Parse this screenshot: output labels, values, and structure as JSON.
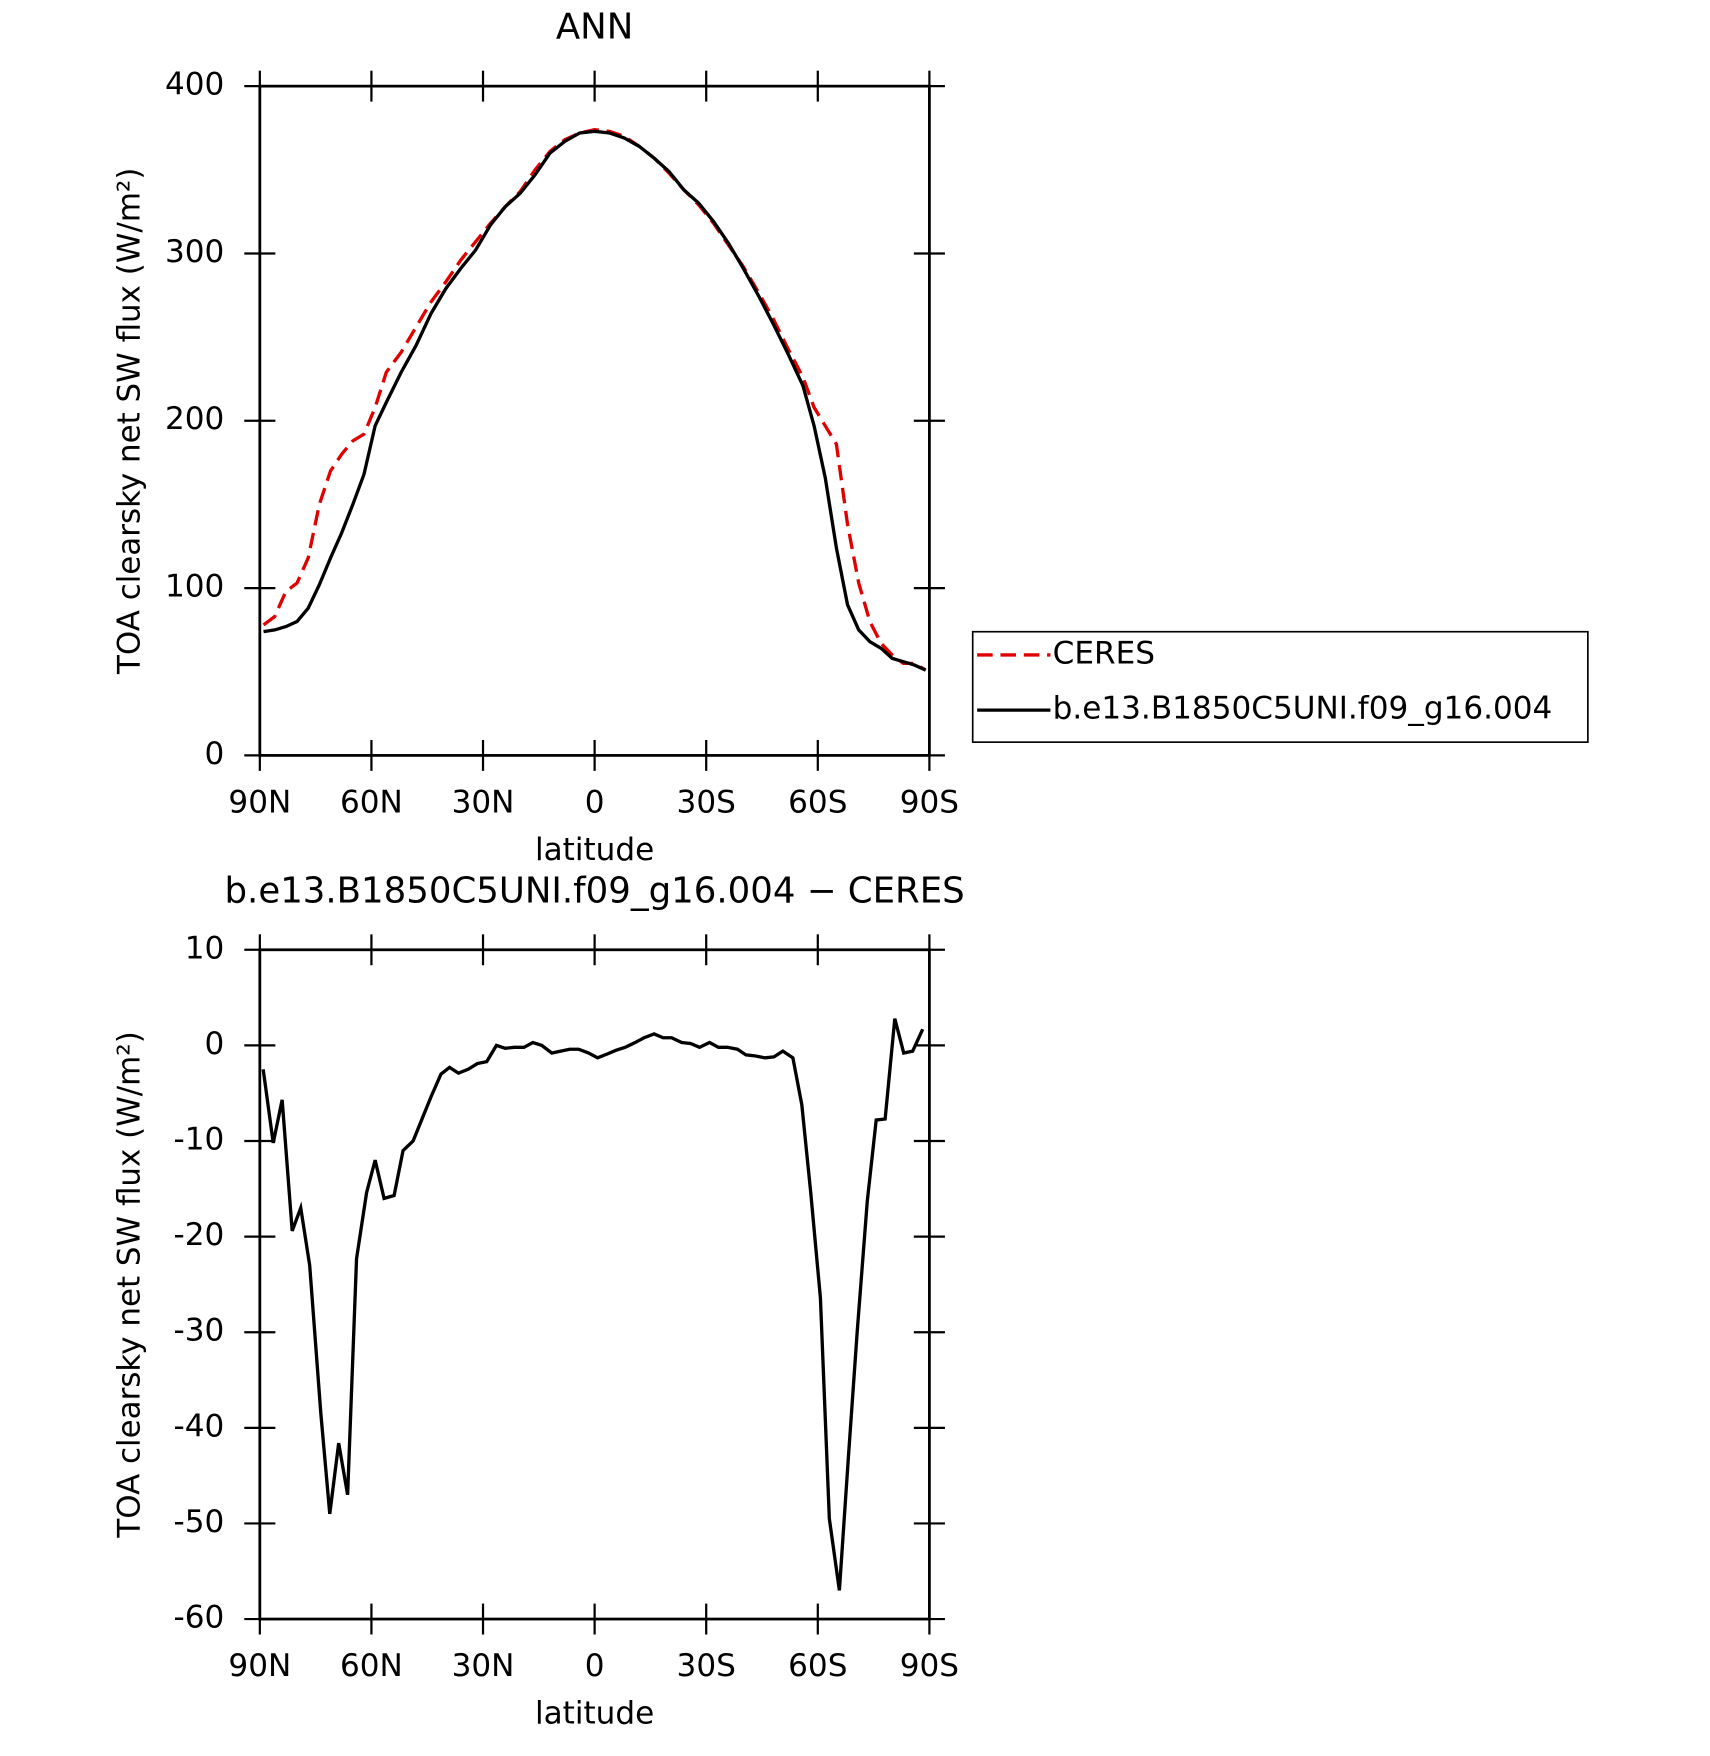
{
  "chart_data": [
    {
      "type": "line",
      "title": "ANN",
      "x_label": "latitude",
      "y_label": "TOA clearsky net SW flux (W/m²)",
      "x": [
        89,
        86,
        83,
        80,
        77,
        74,
        71,
        68,
        65,
        62,
        59,
        56,
        52,
        48,
        44,
        40,
        36,
        32,
        28,
        24,
        20,
        16,
        12,
        8,
        4,
        0,
        -4,
        -8,
        -12,
        -16,
        -20,
        -24,
        -28,
        -32,
        -36,
        -40,
        -44,
        -48,
        -52,
        -56,
        -59,
        -62,
        -65,
        -68,
        -71,
        -74,
        -77,
        -80,
        -83,
        -86,
        -89
      ],
      "series": [
        {
          "name": "CERES",
          "color": "#e00000",
          "dashed": true,
          "values": [
            78,
            83,
            98,
            103,
            118,
            150,
            170,
            180,
            188,
            192,
            208,
            229,
            241,
            256,
            271,
            283,
            296,
            307,
            318,
            328,
            337,
            350,
            361,
            368,
            372,
            374,
            373,
            370,
            364,
            357,
            348,
            338,
            329,
            318,
            305,
            292,
            277,
            261,
            243,
            226,
            208,
            197,
            186,
            138,
            103,
            80,
            67,
            60,
            55,
            55,
            51
          ]
        },
        {
          "name": "b.e13.B1850C5UNI.f09_g16.004",
          "color": "#000000",
          "dashed": false,
          "values": [
            74,
            75,
            77,
            80,
            88,
            102,
            118,
            133,
            150,
            168,
            197,
            211,
            229,
            245,
            264,
            279,
            291,
            302,
            317,
            328,
            336,
            347,
            360,
            367,
            372,
            373,
            372,
            369,
            364,
            357,
            349,
            338,
            330,
            319,
            306,
            291,
            275,
            258,
            240,
            221,
            197,
            166,
            124,
            90,
            75,
            68,
            64,
            58,
            56,
            54,
            51
          ]
        }
      ],
      "xlim": [
        90,
        -90
      ],
      "xticks": [
        {
          "value": 90,
          "label": "90N"
        },
        {
          "value": 60,
          "label": "60N"
        },
        {
          "value": 30,
          "label": "30N"
        },
        0,
        {
          "value": -30,
          "label": "30S"
        },
        {
          "value": -60,
          "label": "60S"
        },
        {
          "value": -90,
          "label": "90S"
        }
      ],
      "ylim": [
        0,
        400
      ],
      "yticks": [
        0,
        100,
        200,
        300,
        400
      ],
      "legend": "right"
    },
    {
      "type": "line",
      "title": "b.e13.B1850C5UNI.f09_g16.004 − CERES",
      "x_label": "latitude",
      "y_label": "TOA clearsky net SW flux (W/m²)",
      "x": [
        89.1,
        86.4,
        84,
        81.3,
        79,
        76.6,
        73.6,
        71.2,
        68.8,
        66.4,
        64,
        61.3,
        59,
        56.6,
        53.9,
        51.5,
        48.8,
        46.4,
        44,
        41.3,
        39,
        36.6,
        34,
        31.5,
        29,
        26.4,
        24,
        21.6,
        19,
        16.6,
        14.2,
        11.5,
        9.1,
        6.7,
        4.3,
        1.6,
        -0.8,
        -3.4,
        -5.8,
        -8.2,
        -10.9,
        -13.3,
        -16,
        -18.4,
        -20.7,
        -23.4,
        -25.8,
        -28.2,
        -30.9,
        -33.3,
        -35.7,
        -38.4,
        -40.7,
        -43.1,
        -45.8,
        -48.2,
        -50.6,
        -53.3,
        -55.7,
        -58.1,
        -60.7,
        -63.1,
        -65.8,
        -68.2,
        -70.6,
        -73.3,
        -75.7,
        -78.1,
        -80.7,
        -83.1,
        -85.5,
        -88.2
      ],
      "series": [
        {
          "name": "b.e13.B1850C5UNI.f09_g16.004",
          "color": "#000000",
          "dashed": false,
          "values": [
            -2.5,
            -10.2,
            -5.7,
            -19.4,
            -17,
            -23,
            -38.5,
            -49,
            -41.6,
            -47,
            -22.3,
            -15.4,
            -12,
            -16,
            -15.7,
            -11,
            -10,
            -7.7,
            -5.4,
            -3,
            -2.3,
            -2.9,
            -2.5,
            -1.9,
            -1.7,
            0,
            -0.3,
            -0.2,
            -0.2,
            0.3,
            0,
            -0.8,
            -0.6,
            -0.4,
            -0.4,
            -0.8,
            -1.3,
            -0.9,
            -0.5,
            -0.2,
            0.3,
            0.8,
            1.2,
            0.8,
            0.8,
            0.3,
            0.2,
            -0.2,
            0.3,
            -0.2,
            -0.2,
            -0.4,
            -1,
            -1.1,
            -1.3,
            -1.2,
            -0.6,
            -1.3,
            -6.2,
            -15.4,
            -26.4,
            -49.5,
            -57,
            -43.2,
            -29.9,
            -16.3,
            -7.8,
            -7.7,
            2.8,
            -0.8,
            -0.6,
            1.7
          ]
        }
      ],
      "xlim": [
        90,
        -90
      ],
      "xticks": [
        {
          "value": 90,
          "label": "90N"
        },
        {
          "value": 60,
          "label": "60N"
        },
        {
          "value": 30,
          "label": "30N"
        },
        0,
        {
          "value": -30,
          "label": "30S"
        },
        {
          "value": -60,
          "label": "60S"
        },
        {
          "value": -90,
          "label": "90S"
        }
      ],
      "ylim": [
        -60,
        10
      ],
      "yticks": [
        -60,
        -50,
        -40,
        -30,
        -20,
        -10,
        0,
        10
      ]
    }
  ]
}
